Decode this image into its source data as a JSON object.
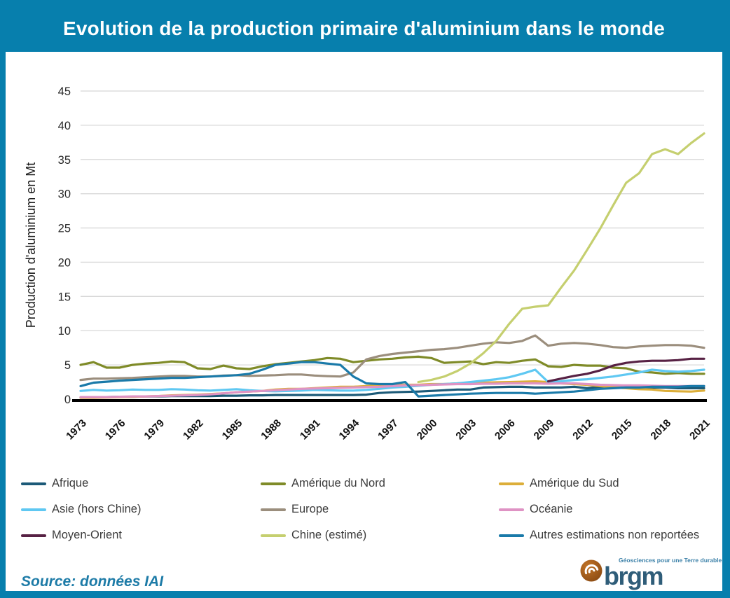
{
  "source": {
    "label": "Source: données IAI"
  },
  "logo": {
    "brand": "brgm",
    "tagline": "Géosciences pour une Terre durable"
  },
  "colors": {
    "frame": "#077fad",
    "banner": "#077fad",
    "grid": "#d8d8d8",
    "axis": "#000000",
    "source_text": "#1d7ba7",
    "logo_brand": "#2f5d79",
    "logo_ball": "#a55c17"
  },
  "chart_data": {
    "type": "line",
    "title": "Evolution de la production primaire d'aluminium dans le monde",
    "xlabel": "",
    "ylabel": "Production d'aluminium en Mt",
    "ylim": [
      0,
      45
    ],
    "yticks": [
      0,
      5,
      10,
      15,
      20,
      25,
      30,
      35,
      40,
      45
    ],
    "x_range": [
      1973,
      2021
    ],
    "xticks": [
      1973,
      1976,
      1979,
      1982,
      1985,
      1988,
      1991,
      1994,
      1997,
      2000,
      2003,
      2006,
      2009,
      2012,
      2015,
      2018,
      2021
    ],
    "grid": true,
    "legend_position": "bottom",
    "series": [
      {
        "name": "Afrique",
        "color": "#1c5a78",
        "start_year": 1973,
        "values": [
          0.25,
          0.3,
          0.3,
          0.35,
          0.35,
          0.4,
          0.4,
          0.45,
          0.45,
          0.45,
          0.45,
          0.5,
          0.5,
          0.55,
          0.55,
          0.6,
          0.6,
          0.6,
          0.6,
          0.6,
          0.6,
          0.6,
          0.65,
          0.9,
          1.0,
          1.05,
          1.1,
          1.2,
          1.3,
          1.4,
          1.4,
          1.7,
          1.75,
          1.8,
          1.8,
          1.7,
          1.7,
          1.7,
          1.8,
          1.6,
          1.8,
          1.7,
          1.7,
          1.7,
          1.7,
          1.7,
          1.6,
          1.6,
          1.6
        ]
      },
      {
        "name": "Amérique du Nord",
        "color": "#7f8b28",
        "start_year": 1973,
        "values": [
          5.0,
          5.4,
          4.6,
          4.6,
          5.0,
          5.2,
          5.3,
          5.5,
          5.4,
          4.5,
          4.4,
          4.9,
          4.5,
          4.4,
          4.8,
          5.1,
          5.3,
          5.5,
          5.7,
          6.0,
          5.9,
          5.4,
          5.6,
          5.8,
          5.9,
          6.1,
          6.2,
          6.0,
          5.3,
          5.4,
          5.5,
          5.1,
          5.4,
          5.3,
          5.6,
          5.8,
          4.8,
          4.7,
          5.0,
          4.9,
          4.9,
          4.6,
          4.5,
          4.0,
          3.9,
          3.7,
          3.8,
          3.7,
          3.7
        ]
      },
      {
        "name": "Amérique du Sud",
        "color": "#dcae39",
        "start_year": 1973,
        "values": [
          0.2,
          0.2,
          0.25,
          0.3,
          0.35,
          0.4,
          0.45,
          0.55,
          0.6,
          0.65,
          0.75,
          0.85,
          1.0,
          1.1,
          1.2,
          1.4,
          1.5,
          1.5,
          1.6,
          1.7,
          1.8,
          1.8,
          1.9,
          2.0,
          2.05,
          2.1,
          2.1,
          2.2,
          2.2,
          2.3,
          2.4,
          2.4,
          2.45,
          2.5,
          2.55,
          2.6,
          2.5,
          2.3,
          2.2,
          2.1,
          1.9,
          1.75,
          1.6,
          1.45,
          1.4,
          1.2,
          1.15,
          1.1,
          1.25
        ]
      },
      {
        "name": "Asie (hors Chine)",
        "color": "#5fc8f2",
        "start_year": 1973,
        "values": [
          1.2,
          1.35,
          1.25,
          1.3,
          1.4,
          1.35,
          1.35,
          1.45,
          1.4,
          1.3,
          1.25,
          1.35,
          1.45,
          1.3,
          1.2,
          1.15,
          1.2,
          1.25,
          1.35,
          1.3,
          1.25,
          1.25,
          1.35,
          1.5,
          1.7,
          1.8,
          1.95,
          2.1,
          2.2,
          2.3,
          2.5,
          2.7,
          2.9,
          3.2,
          3.7,
          4.3,
          2.5,
          2.6,
          2.8,
          2.9,
          3.1,
          3.3,
          3.6,
          3.9,
          4.3,
          4.1,
          4.0,
          4.1,
          4.3
        ]
      },
      {
        "name": "Europe",
        "color": "#9b8e7d",
        "start_year": 1973,
        "values": [
          2.8,
          3.0,
          3.0,
          3.05,
          3.1,
          3.2,
          3.3,
          3.4,
          3.4,
          3.3,
          3.3,
          3.45,
          3.5,
          3.4,
          3.45,
          3.5,
          3.6,
          3.6,
          3.45,
          3.35,
          3.3,
          3.9,
          5.8,
          6.3,
          6.6,
          6.8,
          7.0,
          7.2,
          7.3,
          7.5,
          7.8,
          8.1,
          8.3,
          8.2,
          8.5,
          9.3,
          7.8,
          8.1,
          8.2,
          8.1,
          7.9,
          7.6,
          7.5,
          7.7,
          7.8,
          7.9,
          7.9,
          7.8,
          7.5
        ]
      },
      {
        "name": "Océanie",
        "color": "#df93c4",
        "start_year": 1973,
        "values": [
          0.3,
          0.3,
          0.3,
          0.35,
          0.4,
          0.4,
          0.45,
          0.5,
          0.55,
          0.6,
          0.7,
          0.85,
          1.0,
          1.1,
          1.2,
          1.3,
          1.4,
          1.5,
          1.55,
          1.6,
          1.65,
          1.7,
          1.75,
          1.8,
          1.9,
          2.0,
          2.05,
          2.1,
          2.15,
          2.2,
          2.2,
          2.25,
          2.25,
          2.3,
          2.3,
          2.3,
          2.25,
          2.3,
          2.3,
          2.2,
          2.1,
          2.05,
          2.0,
          2.0,
          1.95,
          1.9,
          1.9,
          1.9,
          1.9
        ]
      },
      {
        "name": "Moyen-Orient",
        "color": "#572144",
        "start_year": 2009,
        "values": [
          2.6,
          3.0,
          3.4,
          3.7,
          4.2,
          4.9,
          5.3,
          5.5,
          5.6,
          5.6,
          5.7,
          5.9,
          5.9
        ]
      },
      {
        "name": "Chine (estimé)",
        "color": "#c5cf6f",
        "start_year": 1999,
        "values": [
          2.5,
          2.8,
          3.3,
          4.1,
          5.2,
          6.7,
          8.5,
          11.0,
          13.2,
          13.5,
          13.7,
          16.3,
          18.8,
          21.8,
          24.9,
          28.3,
          31.6,
          33.0,
          35.8,
          36.5,
          35.8,
          37.4,
          38.8
        ]
      },
      {
        "name": "Autres estimations non reportées",
        "color": "#1a7aa9",
        "start_year": 1973,
        "values": [
          1.9,
          2.4,
          2.55,
          2.7,
          2.8,
          2.9,
          3.0,
          3.1,
          3.1,
          3.2,
          3.3,
          3.4,
          3.5,
          3.7,
          4.3,
          5.0,
          5.2,
          5.4,
          5.4,
          5.2,
          5.0,
          3.3,
          2.3,
          2.2,
          2.2,
          2.5,
          0.4,
          0.5,
          0.6,
          0.7,
          0.8,
          0.85,
          0.9,
          0.9,
          0.9,
          0.8,
          0.9,
          1.0,
          1.1,
          1.3,
          1.5,
          1.6,
          1.7,
          1.7,
          1.8,
          1.8,
          1.8,
          1.9,
          1.9
        ]
      }
    ]
  }
}
